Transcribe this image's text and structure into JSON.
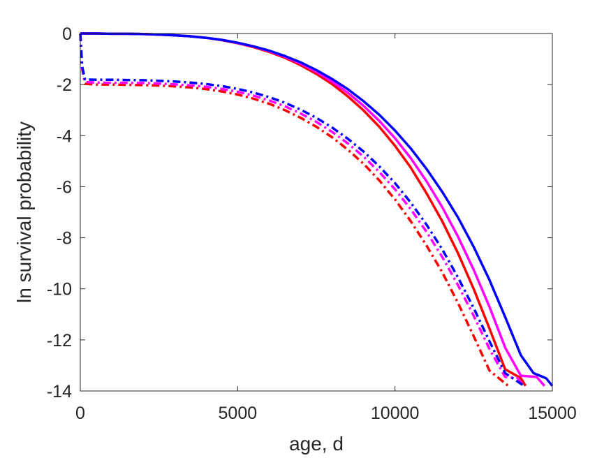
{
  "chart_data": {
    "type": "line",
    "title": "",
    "xlabel": "age, d",
    "ylabel": "ln survival probability",
    "xlim": [
      0,
      15000
    ],
    "ylim": [
      -14,
      0
    ],
    "xticks": [
      0,
      5000,
      10000,
      15000
    ],
    "yticks": [
      0,
      -2,
      -4,
      -6,
      -8,
      -10,
      -12,
      -14
    ],
    "grid": false,
    "legend": "none",
    "series": [
      {
        "color": "#ff0000",
        "style": "solid",
        "width": 3.5,
        "points": [
          [
            0,
            0
          ],
          [
            500,
            0
          ],
          [
            1000,
            -0.01
          ],
          [
            1500,
            -0.01
          ],
          [
            2000,
            -0.02
          ],
          [
            2500,
            -0.04
          ],
          [
            3000,
            -0.07
          ],
          [
            3500,
            -0.11
          ],
          [
            4000,
            -0.17
          ],
          [
            4500,
            -0.26
          ],
          [
            5000,
            -0.38
          ],
          [
            5500,
            -0.53
          ],
          [
            6000,
            -0.72
          ],
          [
            6500,
            -0.95
          ],
          [
            7000,
            -1.24
          ],
          [
            7500,
            -1.58
          ],
          [
            8000,
            -1.98
          ],
          [
            8500,
            -2.46
          ],
          [
            9000,
            -3.01
          ],
          [
            9500,
            -3.65
          ],
          [
            10000,
            -4.4
          ],
          [
            10500,
            -5.25
          ],
          [
            11000,
            -6.25
          ],
          [
            11500,
            -7.35
          ],
          [
            12000,
            -8.6
          ],
          [
            12500,
            -10.0
          ],
          [
            13000,
            -11.55
          ],
          [
            13500,
            -13.15
          ],
          [
            14000,
            -13.5
          ],
          [
            14150,
            -13.8
          ]
        ]
      },
      {
        "color": "#ff00ff",
        "style": "solid",
        "width": 3.5,
        "points": [
          [
            0,
            0
          ],
          [
            500,
            0
          ],
          [
            1000,
            -0.01
          ],
          [
            1500,
            -0.01
          ],
          [
            2000,
            -0.02
          ],
          [
            2500,
            -0.04
          ],
          [
            3000,
            -0.07
          ],
          [
            3500,
            -0.11
          ],
          [
            4000,
            -0.17
          ],
          [
            4500,
            -0.25
          ],
          [
            5000,
            -0.37
          ],
          [
            5500,
            -0.51
          ],
          [
            6000,
            -0.69
          ],
          [
            6500,
            -0.91
          ],
          [
            7000,
            -1.18
          ],
          [
            7500,
            -1.5
          ],
          [
            8000,
            -1.88
          ],
          [
            8500,
            -2.32
          ],
          [
            9000,
            -2.83
          ],
          [
            9500,
            -3.42
          ],
          [
            10000,
            -4.1
          ],
          [
            10500,
            -4.88
          ],
          [
            11000,
            -5.78
          ],
          [
            11500,
            -6.8
          ],
          [
            12000,
            -7.95
          ],
          [
            12500,
            -9.25
          ],
          [
            13000,
            -10.7
          ],
          [
            13500,
            -12.3
          ],
          [
            14000,
            -13.4
          ],
          [
            14500,
            -13.45
          ],
          [
            14750,
            -13.8
          ]
        ]
      },
      {
        "color": "#0000ff",
        "style": "solid",
        "width": 3.5,
        "points": [
          [
            0,
            0
          ],
          [
            500,
            0
          ],
          [
            1000,
            -0.01
          ],
          [
            1500,
            -0.01
          ],
          [
            2000,
            -0.02
          ],
          [
            2500,
            -0.04
          ],
          [
            3000,
            -0.07
          ],
          [
            3500,
            -0.11
          ],
          [
            4000,
            -0.17
          ],
          [
            4500,
            -0.25
          ],
          [
            5000,
            -0.36
          ],
          [
            5500,
            -0.5
          ],
          [
            6000,
            -0.67
          ],
          [
            6500,
            -0.88
          ],
          [
            7000,
            -1.13
          ],
          [
            7500,
            -1.43
          ],
          [
            8000,
            -1.78
          ],
          [
            8500,
            -2.18
          ],
          [
            9000,
            -2.65
          ],
          [
            9500,
            -3.18
          ],
          [
            10000,
            -3.8
          ],
          [
            10500,
            -4.5
          ],
          [
            11000,
            -5.3
          ],
          [
            11500,
            -6.2
          ],
          [
            12000,
            -7.2
          ],
          [
            12500,
            -8.35
          ],
          [
            13000,
            -9.65
          ],
          [
            13500,
            -11.1
          ],
          [
            14000,
            -12.6
          ],
          [
            14400,
            -13.3
          ],
          [
            14800,
            -13.5
          ],
          [
            15000,
            -13.8
          ]
        ]
      },
      {
        "color": "#ff0000",
        "style": "dashdot",
        "width": 3.5,
        "points": [
          [
            0,
            0
          ],
          [
            60,
            -1.4
          ],
          [
            150,
            -1.97
          ],
          [
            500,
            -2.0
          ],
          [
            1000,
            -2.0
          ],
          [
            1500,
            -2.01
          ],
          [
            2000,
            -2.02
          ],
          [
            2500,
            -2.04
          ],
          [
            3000,
            -2.07
          ],
          [
            3500,
            -2.11
          ],
          [
            4000,
            -2.18
          ],
          [
            4500,
            -2.27
          ],
          [
            5000,
            -2.39
          ],
          [
            5500,
            -2.55
          ],
          [
            6000,
            -2.75
          ],
          [
            6500,
            -3.0
          ],
          [
            7000,
            -3.3
          ],
          [
            7500,
            -3.65
          ],
          [
            8000,
            -4.06
          ],
          [
            8500,
            -4.55
          ],
          [
            9000,
            -5.1
          ],
          [
            9500,
            -5.75
          ],
          [
            10000,
            -6.5
          ],
          [
            10500,
            -7.35
          ],
          [
            11000,
            -8.3
          ],
          [
            11500,
            -9.35
          ],
          [
            12000,
            -10.55
          ],
          [
            12500,
            -11.85
          ],
          [
            13000,
            -13.2
          ],
          [
            13600,
            -13.8
          ]
        ]
      },
      {
        "color": "#ff00ff",
        "style": "dashdot",
        "width": 3.5,
        "points": [
          [
            0,
            0
          ],
          [
            60,
            -1.35
          ],
          [
            150,
            -1.9
          ],
          [
            500,
            -1.92
          ],
          [
            1000,
            -1.93
          ],
          [
            1500,
            -1.93
          ],
          [
            2000,
            -1.94
          ],
          [
            2500,
            -1.96
          ],
          [
            3000,
            -1.99
          ],
          [
            3500,
            -2.03
          ],
          [
            4000,
            -2.09
          ],
          [
            4500,
            -2.17
          ],
          [
            5000,
            -2.28
          ],
          [
            5500,
            -2.43
          ],
          [
            6000,
            -2.62
          ],
          [
            6500,
            -2.85
          ],
          [
            7000,
            -3.13
          ],
          [
            7500,
            -3.46
          ],
          [
            8000,
            -3.85
          ],
          [
            8500,
            -4.3
          ],
          [
            9000,
            -4.82
          ],
          [
            9500,
            -5.42
          ],
          [
            10000,
            -6.1
          ],
          [
            10500,
            -6.88
          ],
          [
            11000,
            -7.76
          ],
          [
            11500,
            -8.75
          ],
          [
            12000,
            -9.85
          ],
          [
            12500,
            -11.05
          ],
          [
            13000,
            -12.35
          ],
          [
            13500,
            -13.45
          ],
          [
            13900,
            -13.5
          ],
          [
            14100,
            -13.8
          ]
        ]
      },
      {
        "color": "#0000ff",
        "style": "dashdot",
        "width": 3.5,
        "points": [
          [
            0,
            0
          ],
          [
            60,
            -1.3
          ],
          [
            150,
            -1.8
          ],
          [
            500,
            -1.81
          ],
          [
            1000,
            -1.81
          ],
          [
            1500,
            -1.82
          ],
          [
            2000,
            -1.83
          ],
          [
            2500,
            -1.85
          ],
          [
            3000,
            -1.88
          ],
          [
            3500,
            -1.92
          ],
          [
            4000,
            -1.98
          ],
          [
            4500,
            -2.06
          ],
          [
            5000,
            -2.17
          ],
          [
            5500,
            -2.31
          ],
          [
            6000,
            -2.49
          ],
          [
            6500,
            -2.71
          ],
          [
            7000,
            -2.98
          ],
          [
            7500,
            -3.3
          ],
          [
            8000,
            -3.68
          ],
          [
            8500,
            -4.12
          ],
          [
            9000,
            -4.62
          ],
          [
            9500,
            -5.2
          ],
          [
            10000,
            -5.86
          ],
          [
            10500,
            -6.62
          ],
          [
            11000,
            -7.48
          ],
          [
            11500,
            -8.45
          ],
          [
            12000,
            -9.55
          ],
          [
            12500,
            -10.75
          ],
          [
            13000,
            -12.05
          ],
          [
            13500,
            -13.3
          ],
          [
            14100,
            -13.8
          ]
        ]
      }
    ]
  }
}
